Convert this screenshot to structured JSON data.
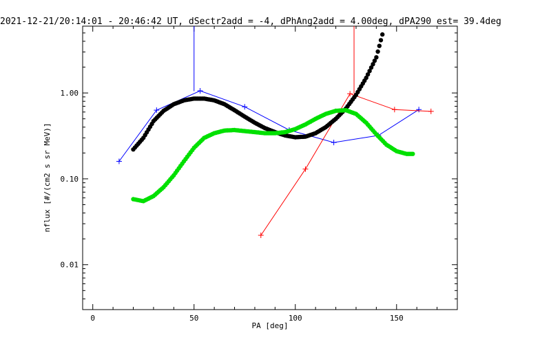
{
  "chart_data": {
    "type": "line",
    "title": "2021-12-21/20:14:01 - 20:46:42 UT, dSectr2add = -4, dPhAng2add = 4.00deg, dPA290_est=  39.4deg",
    "xlabel": "PA [deg]",
    "ylabel": "nflux [#/(cm2 s sr MeV)]",
    "xlim": [
      -5,
      180
    ],
    "ylim": [
      0.003,
      6
    ],
    "yscale": "log",
    "grid": false,
    "x_ticks": [
      0,
      50,
      100,
      150
    ],
    "x_tick_labels": [
      "0",
      "50",
      "100",
      "150"
    ],
    "y_ticks": [
      0.01,
      0.1,
      1.0
    ],
    "y_tick_labels": [
      "0.01",
      "0.10",
      "1.00"
    ],
    "series": [
      {
        "color": "#0000ff",
        "style": "line-plus",
        "points": [
          [
            13,
            0.16
          ],
          [
            31.5,
            0.63
          ],
          [
            53,
            1.06
          ],
          [
            75,
            0.69
          ],
          [
            97,
            0.37
          ],
          [
            119,
            0.265
          ],
          [
            141,
            0.32
          ],
          [
            161,
            0.64
          ]
        ]
      },
      {
        "color": "#0000ff",
        "style": "errorbar",
        "points": [
          [
            50,
            1.05
          ]
        ],
        "upper": [
          6
        ]
      },
      {
        "color": "#ff0000",
        "style": "line-plus",
        "points": [
          [
            83,
            0.022
          ],
          [
            105,
            0.13
          ],
          [
            127,
            0.98
          ],
          [
            149,
            0.64
          ],
          [
            167,
            0.61
          ]
        ]
      },
      {
        "color": "#ff0000",
        "style": "errorbar",
        "points": [
          [
            129,
            0.98
          ]
        ],
        "upper": [
          6
        ]
      },
      {
        "color": "#000000",
        "style": "dots",
        "points": [
          [
            20,
            0.22
          ],
          [
            25,
            0.3
          ],
          [
            30,
            0.47
          ],
          [
            35,
            0.62
          ],
          [
            40,
            0.74
          ],
          [
            45,
            0.82
          ],
          [
            50,
            0.86
          ],
          [
            55,
            0.86
          ],
          [
            60,
            0.82
          ],
          [
            65,
            0.74
          ],
          [
            70,
            0.63
          ],
          [
            75,
            0.53
          ],
          [
            80,
            0.45
          ],
          [
            85,
            0.39
          ],
          [
            90,
            0.35
          ],
          [
            95,
            0.32
          ],
          [
            100,
            0.305
          ],
          [
            105,
            0.31
          ],
          [
            110,
            0.34
          ],
          [
            115,
            0.4
          ],
          [
            120,
            0.5
          ],
          [
            125,
            0.66
          ],
          [
            130,
            0.95
          ],
          [
            135,
            1.5
          ],
          [
            140,
            2.6
          ],
          [
            143,
            4.8
          ]
        ]
      },
      {
        "color": "#00e000",
        "style": "dots",
        "points": [
          [
            20,
            0.058
          ],
          [
            25,
            0.055
          ],
          [
            30,
            0.063
          ],
          [
            35,
            0.08
          ],
          [
            40,
            0.11
          ],
          [
            45,
            0.16
          ],
          [
            50,
            0.23
          ],
          [
            55,
            0.3
          ],
          [
            60,
            0.34
          ],
          [
            65,
            0.365
          ],
          [
            70,
            0.37
          ],
          [
            75,
            0.36
          ],
          [
            80,
            0.35
          ],
          [
            85,
            0.34
          ],
          [
            90,
            0.34
          ],
          [
            95,
            0.35
          ],
          [
            100,
            0.38
          ],
          [
            105,
            0.43
          ],
          [
            110,
            0.5
          ],
          [
            115,
            0.57
          ],
          [
            120,
            0.62
          ],
          [
            125,
            0.63
          ],
          [
            130,
            0.57
          ],
          [
            135,
            0.45
          ],
          [
            140,
            0.33
          ],
          [
            145,
            0.25
          ],
          [
            150,
            0.21
          ],
          [
            155,
            0.195
          ],
          [
            158,
            0.195
          ]
        ]
      }
    ]
  }
}
